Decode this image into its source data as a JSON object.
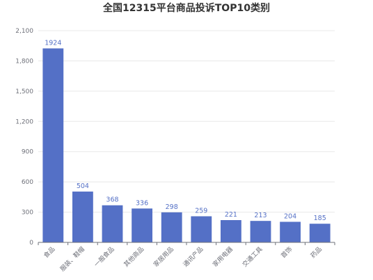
{
  "chart_data": {
    "type": "bar",
    "title": "全国12315平台商品投诉TOP10类别",
    "categories": [
      "食品",
      "服装、鞋帽",
      "一般食品",
      "其他商品",
      "家居用品",
      "通讯产品",
      "家用电器",
      "交通工具",
      "首饰",
      "药品"
    ],
    "values": [
      1924,
      504,
      368,
      336,
      298,
      259,
      221,
      213,
      204,
      185
    ],
    "yticks": [
      "0",
      "300",
      "600",
      "900",
      "1,200",
      "1,500",
      "1,800",
      "2,100"
    ],
    "ylim": [
      0,
      2100
    ],
    "grid": true,
    "bar_color": "#5470c6",
    "label_color": "#5470c6"
  }
}
